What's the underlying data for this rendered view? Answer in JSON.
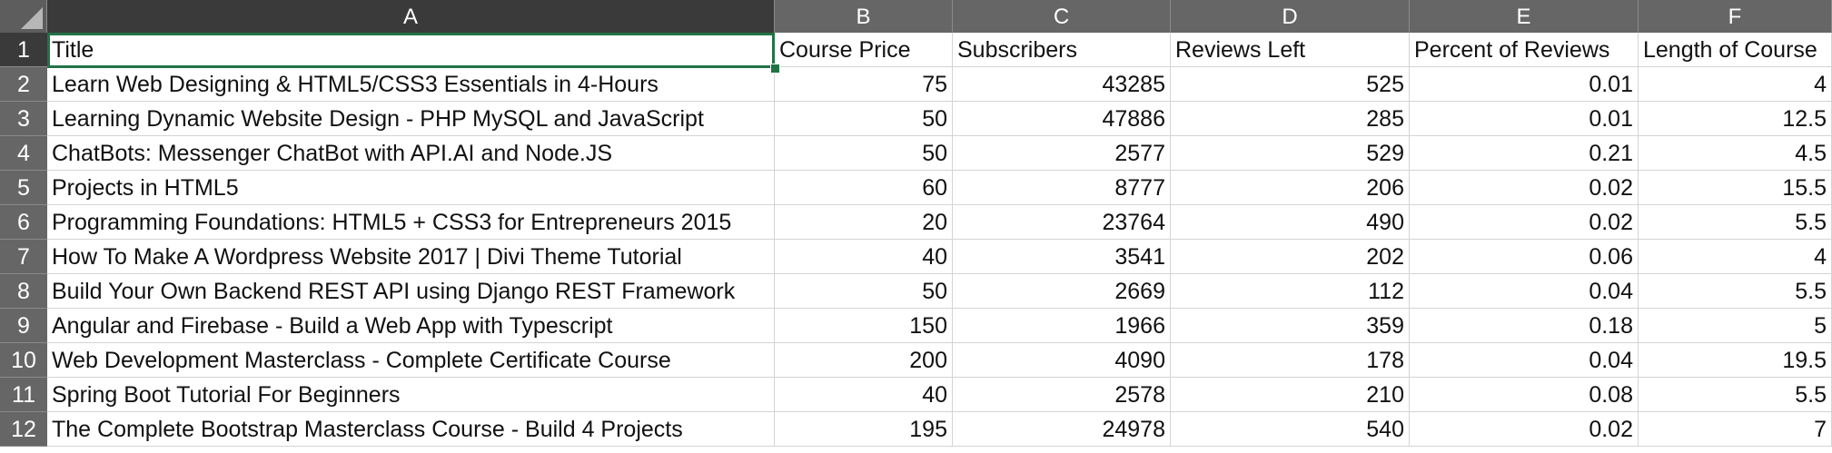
{
  "columns": [
    {
      "letter": "A",
      "class": "w-a"
    },
    {
      "letter": "B",
      "class": "w-b"
    },
    {
      "letter": "C",
      "class": "w-c"
    },
    {
      "letter": "D",
      "class": "w-d"
    },
    {
      "letter": "E",
      "class": "w-e"
    },
    {
      "letter": "F",
      "class": "w-f"
    }
  ],
  "headers": [
    "Title",
    "Course Price",
    "Subscribers",
    "Reviews Left",
    "Percent of Reviews",
    "Length of Course"
  ],
  "rows": [
    {
      "row_number": "2",
      "cells": [
        "Learn Web Designing & HTML5/CSS3 Essentials in 4-Hours",
        "75",
        "43285",
        "525",
        "0.01",
        "4"
      ]
    },
    {
      "row_number": "3",
      "cells": [
        "Learning Dynamic Website Design - PHP MySQL and JavaScript",
        "50",
        "47886",
        "285",
        "0.01",
        "12.5"
      ]
    },
    {
      "row_number": "4",
      "cells": [
        "ChatBots: Messenger ChatBot with API.AI and Node.JS",
        "50",
        "2577",
        "529",
        "0.21",
        "4.5"
      ]
    },
    {
      "row_number": "5",
      "cells": [
        "Projects in HTML5",
        "60",
        "8777",
        "206",
        "0.02",
        "15.5"
      ]
    },
    {
      "row_number": "6",
      "cells": [
        "Programming Foundations: HTML5 + CSS3 for Entrepreneurs 2015",
        "20",
        "23764",
        "490",
        "0.02",
        "5.5"
      ]
    },
    {
      "row_number": "7",
      "cells": [
        "How To Make A Wordpress Website 2017 | Divi Theme Tutorial",
        "40",
        "3541",
        "202",
        "0.06",
        "4"
      ]
    },
    {
      "row_number": "8",
      "cells": [
        "Build Your Own Backend REST API using Django REST Framework",
        "50",
        "2669",
        "112",
        "0.04",
        "5.5"
      ]
    },
    {
      "row_number": "9",
      "cells": [
        "Angular and Firebase - Build a Web App with Typescript",
        "150",
        "1966",
        "359",
        "0.18",
        "5"
      ]
    },
    {
      "row_number": "10",
      "cells": [
        "Web Development Masterclass - Complete Certificate Course",
        "200",
        "4090",
        "178",
        "0.04",
        "19.5"
      ]
    },
    {
      "row_number": "11",
      "cells": [
        "Spring Boot Tutorial For Beginners",
        "40",
        "2578",
        "210",
        "0.08",
        "5.5"
      ]
    },
    {
      "row_number": "12",
      "cells": [
        "The Complete Bootstrap Masterclass Course - Build 4 Projects",
        "195",
        "24978",
        "540",
        "0.02",
        "7"
      ]
    }
  ],
  "header_row_number": "1",
  "colors": {
    "active_border": "#217346",
    "header_bg": "#666666",
    "header_selected_bg": "#3a3a3a"
  }
}
